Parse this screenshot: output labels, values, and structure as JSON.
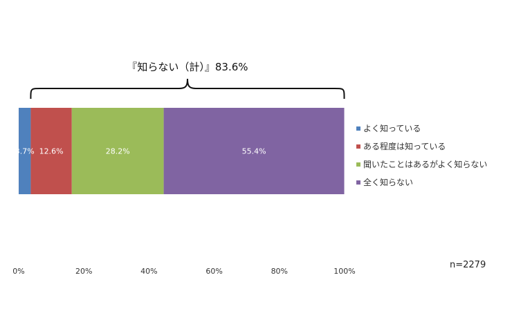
{
  "chart_data": {
    "type": "bar",
    "orientation": "horizontal-stacked-100",
    "series": [
      {
        "name": "よく知っている",
        "value": 3.7,
        "label": "3.7%",
        "color": "#4F81BD"
      },
      {
        "name": "ある程度は知っている",
        "value": 12.6,
        "label": "12.6%",
        "color": "#C0504D"
      },
      {
        "name": "聞いたことはあるがよく知らない",
        "value": 28.2,
        "label": "28.2%",
        "color": "#9BBB59"
      },
      {
        "name": "全く知らない",
        "value": 55.4,
        "label": "55.4%",
        "color": "#8064A2"
      }
    ],
    "xlim": [
      0,
      100
    ],
    "x_ticks": [
      "0%",
      "20%",
      "40%",
      "60%",
      "80%",
      "100%"
    ],
    "legend_position": "right",
    "annotation": {
      "text": "『知らない（計）』83.6%",
      "spans_series": [
        1,
        2,
        3
      ]
    },
    "sample_size": "n=2279"
  }
}
